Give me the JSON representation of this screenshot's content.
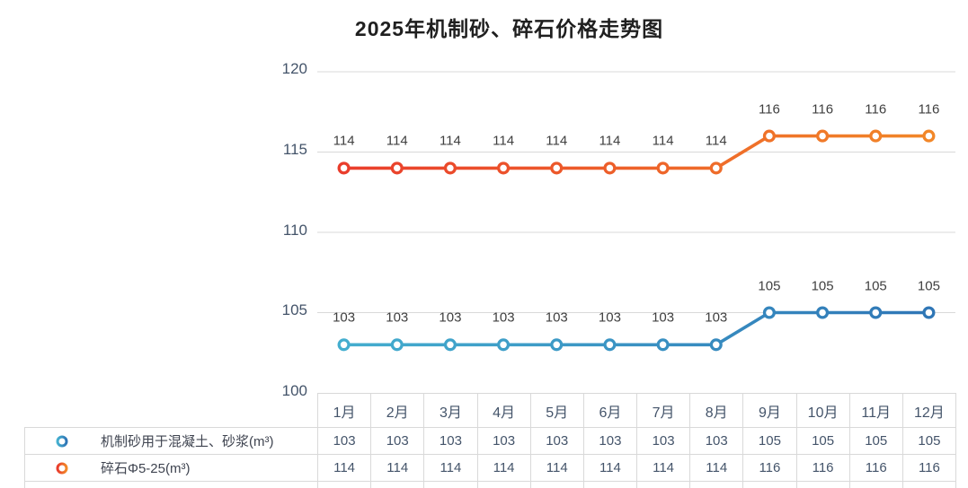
{
  "title": "2025年机制砂、碎石价格走势图",
  "chart_data": {
    "type": "line",
    "title": "2025年机制砂、碎石价格走势图",
    "categories": [
      "1月",
      "2月",
      "3月",
      "4月",
      "5月",
      "6月",
      "7月",
      "8月",
      "9月",
      "10月",
      "11月",
      "12月"
    ],
    "series": [
      {
        "name": "机制砂用于混凝土、砂浆(m³)",
        "values": [
          103,
          103,
          103,
          103,
          103,
          103,
          103,
          103,
          105,
          105,
          105,
          105
        ],
        "line_gradient": [
          "#45B0D0",
          "#2E74B5"
        ]
      },
      {
        "name": "碎石Φ5-25(m³)",
        "values": [
          114,
          114,
          114,
          114,
          114,
          114,
          114,
          114,
          116,
          116,
          116,
          116
        ],
        "line_gradient": [
          "#E93A2C",
          "#F28A28"
        ]
      }
    ],
    "xlabel": "",
    "ylabel": "",
    "ylim": [
      100,
      120
    ],
    "ytick_interval": 5,
    "yticks": [
      "120",
      "115",
      "110",
      "105",
      "100"
    ],
    "grid": true,
    "data_labels": true,
    "legend_position": "bottom-left-table"
  },
  "colors": {
    "gridline": "#D9D9D9",
    "table_border": "#D9D9D9",
    "axis_text": "#44546A",
    "data_label_text": "#404040",
    "title_text": "#1F1F1F",
    "marker_fill": "#FFFFFF"
  }
}
